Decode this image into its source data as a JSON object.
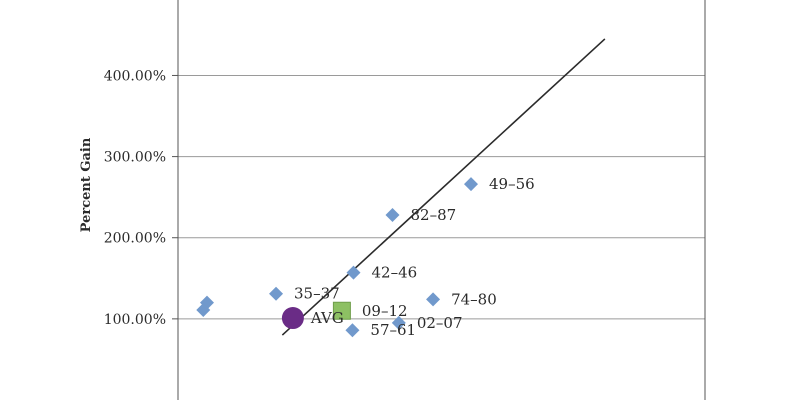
{
  "chart_data": {
    "type": "scatter",
    "title": "",
    "xlabel": "",
    "ylabel": "Percent Gain",
    "y_tick_labels": [
      "100.00%",
      "200.00%",
      "300.00%",
      "400.00%"
    ],
    "y_ticks": [
      100,
      200,
      300,
      400
    ],
    "ylim": [
      0,
      493
    ],
    "xlim": [
      0,
      100
    ],
    "grid": "horizontal",
    "points": [
      {
        "label": "49–56",
        "x": 55.6,
        "y": 266,
        "marker": "diamond",
        "color": "#7199cc"
      },
      {
        "label": "82–87",
        "x": 40.7,
        "y": 228,
        "marker": "diamond",
        "color": "#7199cc"
      },
      {
        "label": "42–46",
        "x": 33.3,
        "y": 157,
        "marker": "diamond",
        "color": "#7199cc"
      },
      {
        "label": "35–37",
        "x": 18.6,
        "y": 131,
        "marker": "diamond",
        "color": "#7199cc"
      },
      {
        "label": "74–80",
        "x": 48.4,
        "y": 124,
        "marker": "diamond",
        "color": "#7199cc"
      },
      {
        "label": "02–07",
        "x": 41.9,
        "y": 95,
        "marker": "diamond",
        "color": "#7199cc"
      },
      {
        "label": "57–61",
        "x": 33.1,
        "y": 86,
        "marker": "diamond",
        "color": "#7199cc"
      },
      {
        "label": "",
        "x": 5.5,
        "y": 120,
        "marker": "diamond",
        "color": "#7199cc"
      },
      {
        "label": "",
        "x": 4.8,
        "y": 111,
        "marker": "diamond",
        "color": "#7199cc"
      },
      {
        "label": "09–12",
        "x": 31.1,
        "y": 110,
        "marker": "square",
        "color": "#8dc063"
      },
      {
        "label": "AVG",
        "x": 21.8,
        "y": 101,
        "marker": "circle",
        "color": "#6a2c86"
      }
    ],
    "trendline": {
      "x": [
        19.8,
        81.0
      ],
      "y": [
        80,
        445
      ],
      "color": "#2b2b2b"
    }
  }
}
